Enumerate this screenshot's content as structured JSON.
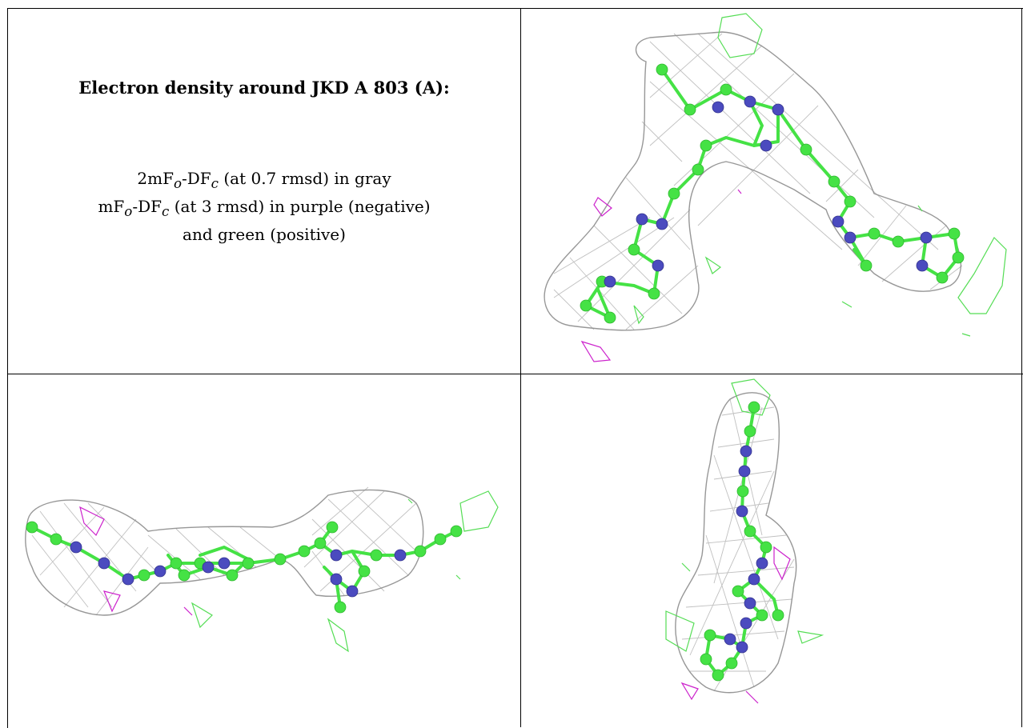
{
  "title": "Electron density around JKD A 803 (A):",
  "legend": {
    "line1": {
      "p1": "2mF",
      "s1": "o",
      "p2": "-DF",
      "s2": "c",
      "p3": " (at 0.7 rmsd) in gray"
    },
    "line2": {
      "p1": "mF",
      "s1": "o",
      "p2": "-DF",
      "s2": "c",
      "p3": " (at 3 rmsd) in purple (negative)"
    },
    "line3": "and green (positive)"
  },
  "colors": {
    "mesh_2fofc": "#8c8c8c",
    "atom_carbon": "#45e245",
    "atom_nitrogen": "#4b4bbf",
    "density_negative": "#cc22cc",
    "density_positive": "#55dd55"
  }
}
